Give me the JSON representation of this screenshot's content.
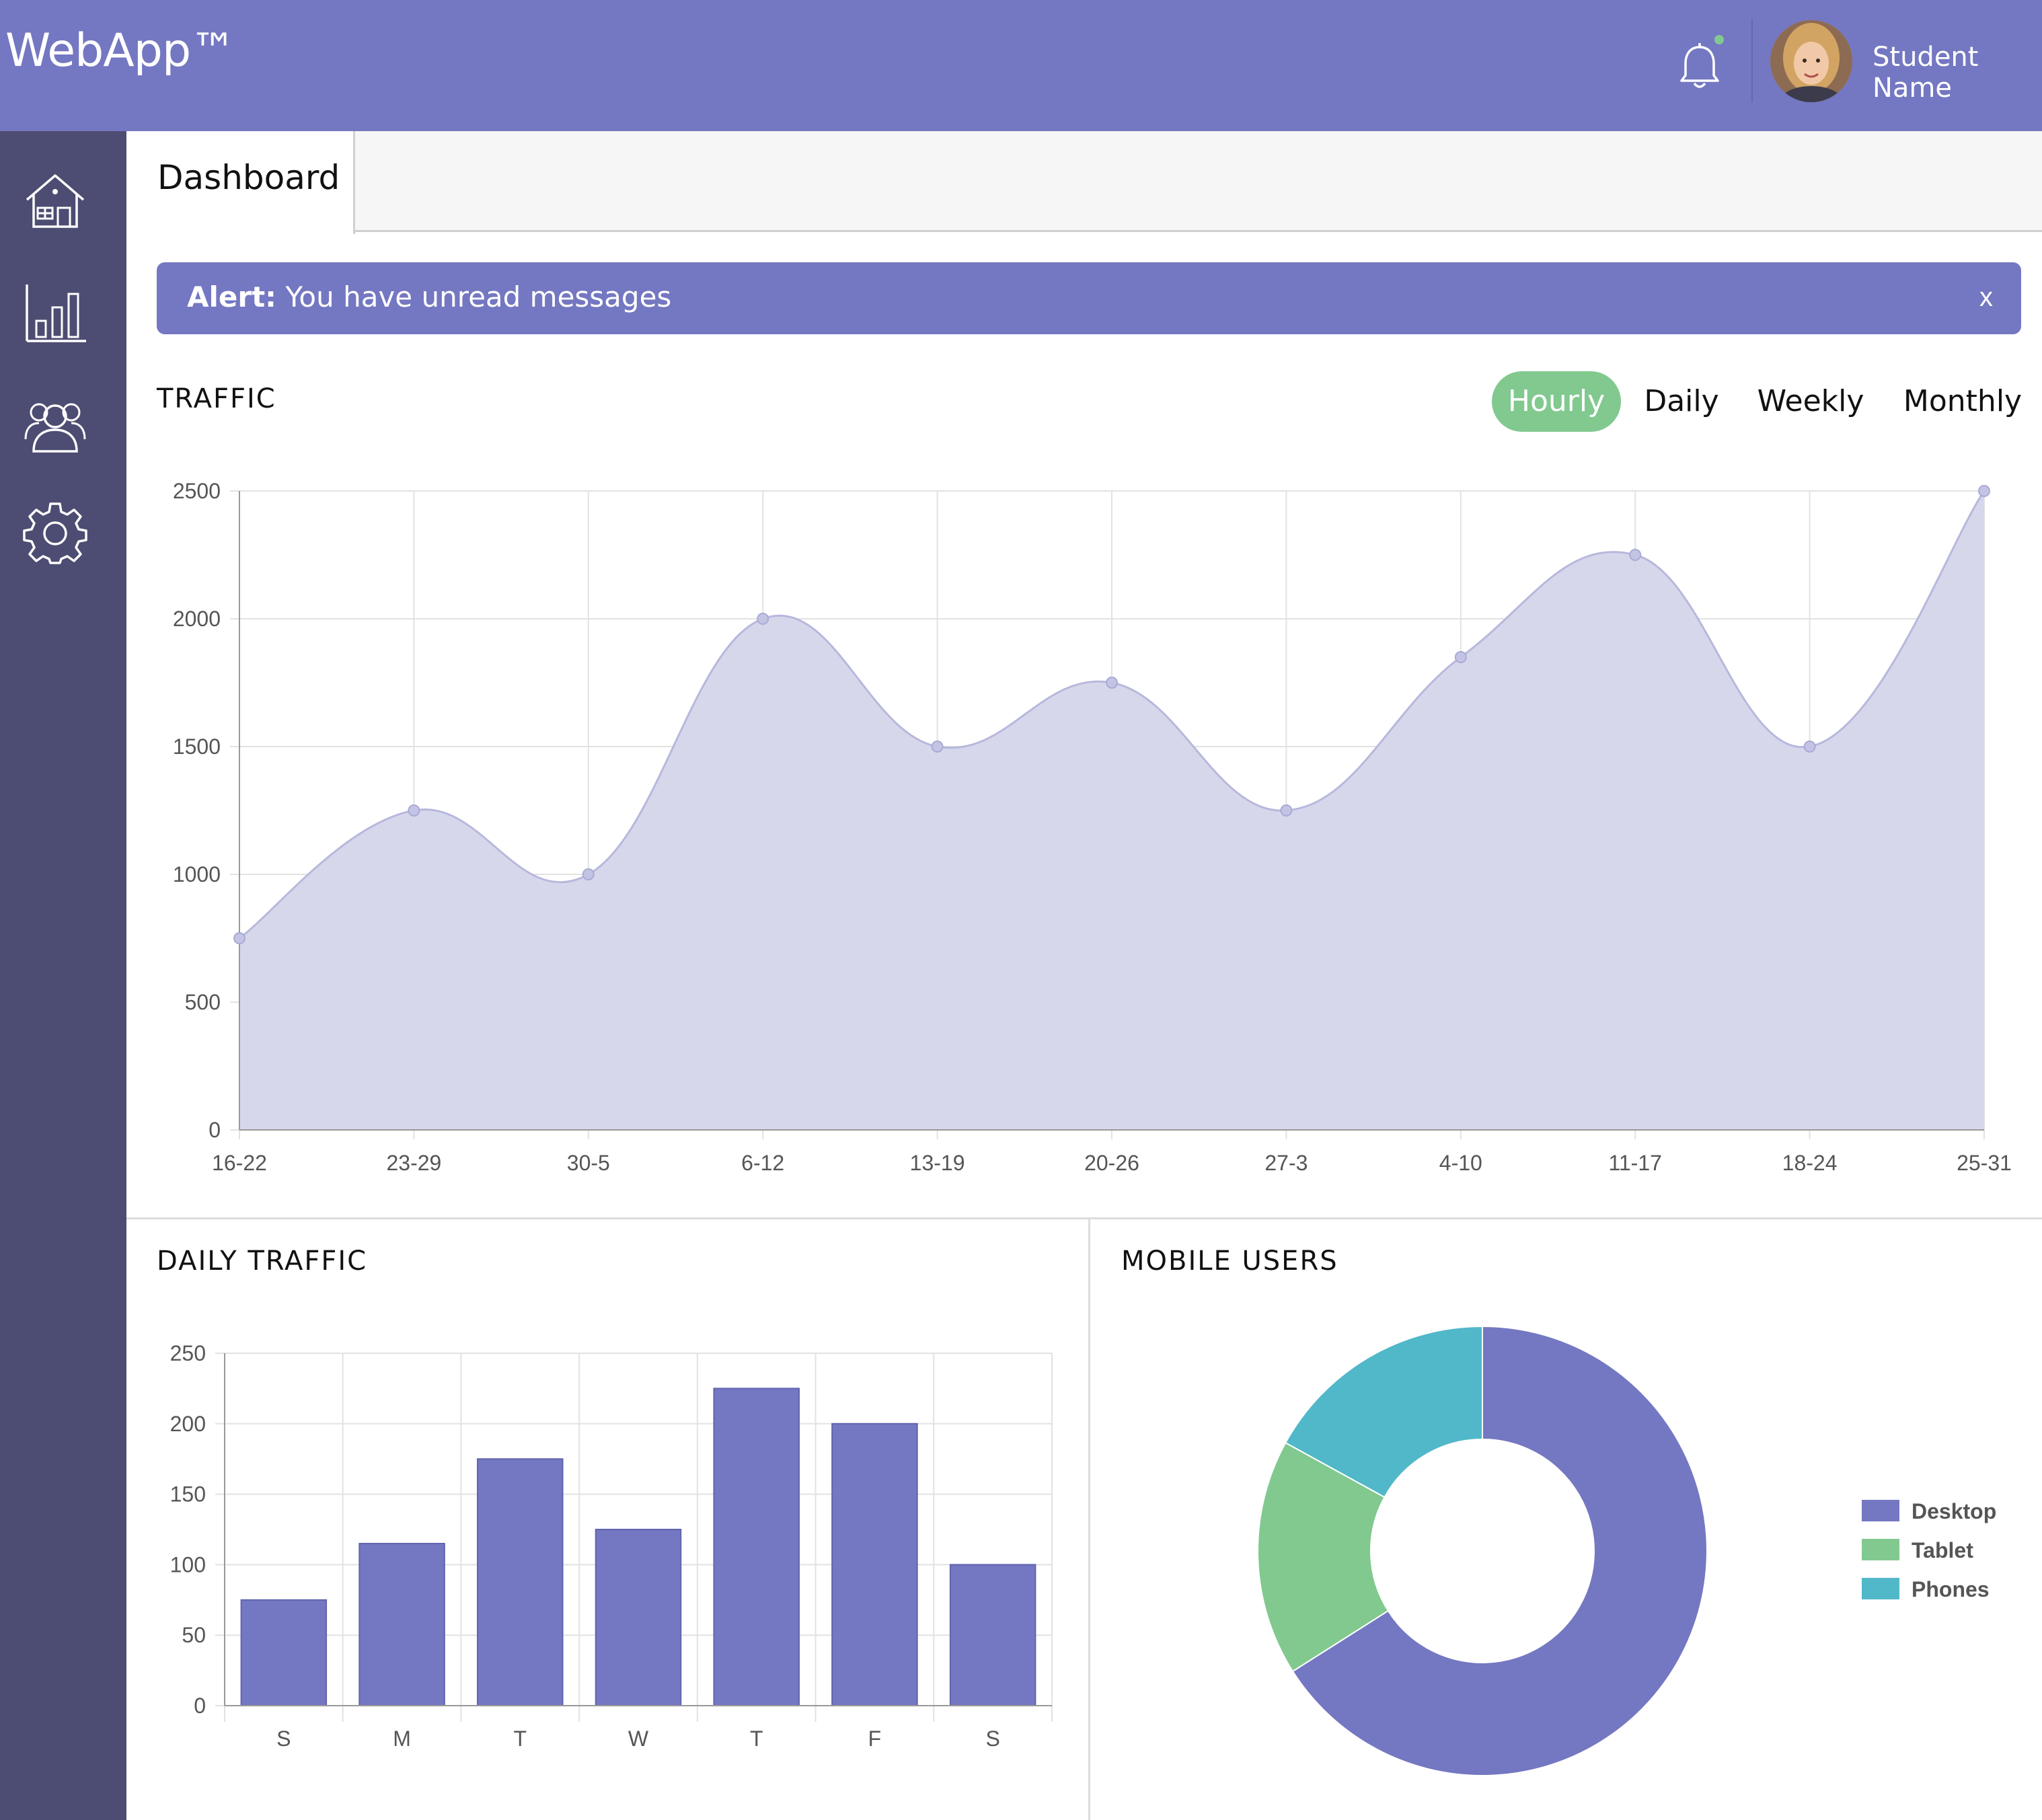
{
  "header": {
    "brand_bold": "Web",
    "brand_rest": "App™",
    "user_name": "Student Name"
  },
  "sidebar": {
    "items": [
      {
        "icon": "home-icon"
      },
      {
        "icon": "bar-chart-icon"
      },
      {
        "icon": "users-icon"
      },
      {
        "icon": "settings-icon"
      }
    ]
  },
  "tabs": [
    {
      "label": "Dashboard",
      "active": true
    }
  ],
  "alert": {
    "label": "Alert:",
    "message": " You have unread messages",
    "close": "x"
  },
  "traffic": {
    "title": "TRAFFIC",
    "ranges": [
      "Hourly",
      "Daily",
      "Weekly",
      "Monthly"
    ],
    "active_range": "Hourly"
  },
  "daily_traffic": {
    "title": "DAILY TRAFFIC"
  },
  "mobile_users": {
    "title": "MOBILE USERS"
  },
  "colors": {
    "accent": "#7477c1",
    "sidebar": "#4d4c72",
    "green": "#81c98f",
    "teal": "#51b8c9",
    "area_fill": "#d5d5eb"
  },
  "chart_data": [
    {
      "type": "area",
      "categories": [
        "16-22",
        "23-29",
        "30-5",
        "6-12",
        "13-19",
        "20-26",
        "27-3",
        "4-10",
        "11-17",
        "18-24",
        "25-31"
      ],
      "values": [
        750,
        1250,
        1000,
        2000,
        1500,
        1750,
        1250,
        1850,
        2250,
        1500,
        2500
      ],
      "ylim": [
        0,
        2500
      ],
      "yticks": [
        0,
        500,
        1000,
        1500,
        2000,
        2500
      ],
      "grid": true
    },
    {
      "type": "bar",
      "categories": [
        "S",
        "M",
        "T",
        "W",
        "T",
        "F",
        "S"
      ],
      "values": [
        75,
        115,
        175,
        125,
        225,
        200,
        100
      ],
      "ylim": [
        0,
        250
      ],
      "yticks": [
        0,
        50,
        100,
        150,
        200,
        250
      ],
      "grid": true
    },
    {
      "type": "pie",
      "series": [
        {
          "name": "Desktop",
          "value": 66,
          "color": "#7477c1"
        },
        {
          "name": "Tablet",
          "value": 17,
          "color": "#81c98f"
        },
        {
          "name": "Phones",
          "value": 17,
          "color": "#51b8c9"
        }
      ],
      "legend": "right"
    }
  ]
}
